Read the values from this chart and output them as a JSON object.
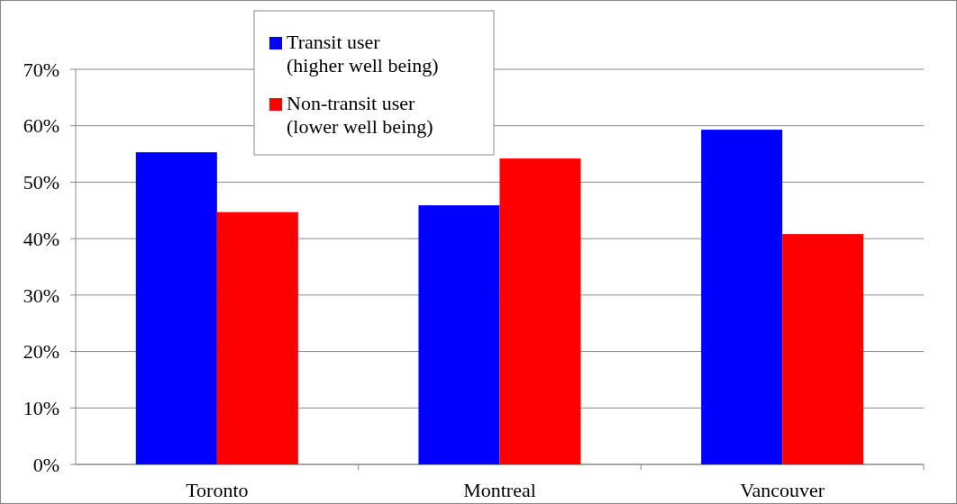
{
  "chart_data": {
    "type": "bar",
    "categories": [
      "Toronto",
      "Montreal",
      "Vancouver"
    ],
    "series": [
      {
        "name": "Transit user (higher well being)",
        "color": "#0000ff",
        "values": [
          55.3,
          45.9,
          59.3
        ]
      },
      {
        "name": "Non-transit user (lower well being)",
        "color": "#ff0000",
        "values": [
          44.7,
          54.2,
          40.8
        ]
      }
    ],
    "ylim": [
      0,
      70
    ],
    "yticks": [
      {
        "value": 0,
        "label": "0%"
      },
      {
        "value": 10,
        "label": "10%"
      },
      {
        "value": 20,
        "label": "20%"
      },
      {
        "value": 30,
        "label": "30%"
      },
      {
        "value": 40,
        "label": "40%"
      },
      {
        "value": 50,
        "label": "50%"
      },
      {
        "value": 60,
        "label": "60%"
      },
      {
        "value": 70,
        "label": "70%"
      }
    ],
    "grid": "y",
    "legend": "top"
  }
}
